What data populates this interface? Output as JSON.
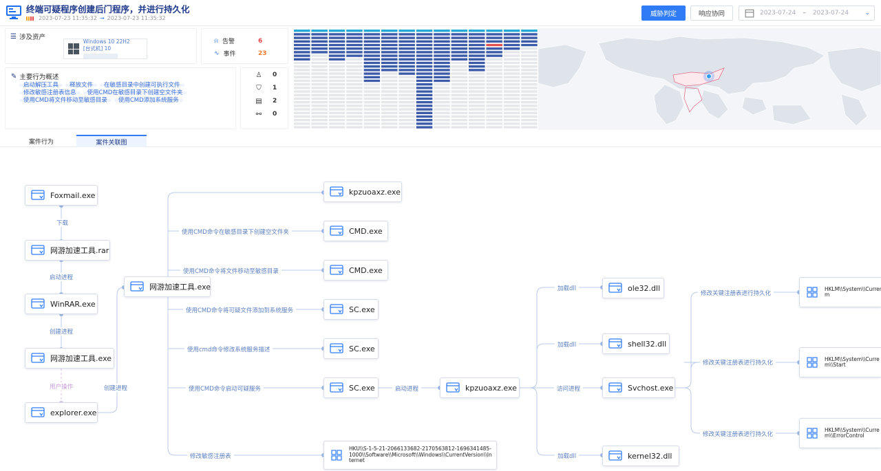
{
  "header": {
    "title": "终端可疑程序创建后门程序，并进行持久化",
    "time_start": "2023-07-23 11:35:32",
    "time_arrow": "→",
    "time_end": "2023-07-23 11:35:32",
    "btn_verdict": "威胁判定",
    "btn_response": "响应协同",
    "date_from": "2023-07-24",
    "date_sep": "–",
    "date_to": "2023-07-24",
    "severity_colors": [
      "#f5a623",
      "#f5a623",
      "#e84a4a",
      "#e84a4a"
    ]
  },
  "assets": {
    "title": "涉及资产",
    "os": "Windows 10  22H2",
    "host_prefix": "[台式机] 10"
  },
  "stats": {
    "alert_label": "告警",
    "alert_value": "6",
    "event_label": "事件",
    "event_value": "23",
    "alert_color": "#e84a4a",
    "event_color": "#f07b2a"
  },
  "behavior": {
    "title": "主要行为概述",
    "chips": [
      "启动解压工具",
      "释放文件",
      "在敏感目录中创建可执行文件",
      "修改敏感注册表信息",
      "使用CMD在敏感目录下创建空文件夹",
      "使用CMD将文件移动至敏感目录",
      "使用CMD添加系统服务"
    ]
  },
  "counts": [
    {
      "icon": "user-icon",
      "glyph": "♙",
      "value": "0"
    },
    {
      "icon": "shield-icon",
      "glyph": "⛉",
      "value": "1"
    },
    {
      "icon": "file-icon",
      "glyph": "▤",
      "value": "2"
    },
    {
      "icon": "link-icon",
      "glyph": "⚯",
      "value": "0"
    }
  ],
  "tabs": [
    {
      "label": "案件行为",
      "active": false
    },
    {
      "label": "案件关联图",
      "active": true
    }
  ],
  "graph": {
    "nodes": {
      "foxmail": "Foxmail.exe",
      "rar": "网游加速工具.rar",
      "winrar": "WinRAR.exe",
      "tool_exe_left": "网游加速工具.exe",
      "explorer": "explorer.exe",
      "tool_exe_mid": "网游加速工具.exe",
      "kpz1": "kpzuoaxz.exe",
      "cmd1": "CMD.exe",
      "cmd2": "CMD.exe",
      "sc1": "SC.exe",
      "sc2": "SC.exe",
      "sc3": "SC.exe",
      "reg_hku": "HKU\\\\S-1-5-21-2066133682-2170563812-1696341485-1000\\\\Software\\\\Microsoft\\\\Windows\\\\CurrentVersion\\\\Internet",
      "kpz2": "kpzuoaxz.exe",
      "ole32": "ole32.dll",
      "shell32": "shell32.dll",
      "svchost": "Svchost.exe",
      "kernel32": "kernel32.dll",
      "reg1": "HKLM\\\\System\\\\Current",
      "reg1b": "m",
      "reg2": "HKLM\\\\System\\\\Curre",
      "reg2b": "m\\\\Start",
      "reg3": "HKLM\\\\System\\\\Curre",
      "reg3b": "m\\\\ErrorControl"
    },
    "edges": {
      "download": "下载",
      "start_process": "启动进程",
      "create_process": "创建进程",
      "user_op": "用户操作",
      "create_process2": "创建进程",
      "e_cmd1": "使用CMD命令在敏感目录下创建空文件夹",
      "e_cmd2": "使用CMD命令将文件移动至敏感目录",
      "e_sc1": "使用CMD命令将可疑文件添加到系统服务",
      "e_sc2": "使用cmd命令修改系统服务描述",
      "e_sc3": "使用CMD命令启动可疑服务",
      "e_reg": "修改敏感注册表",
      "e_kpz2": "启动进程",
      "load1": "加载dll",
      "load2": "加载dll",
      "visit": "访问进程",
      "load3": "加载dll",
      "persist1": "修改关键注册表进行持久化",
      "persist2": "修改关键注册表进行持久化",
      "persist3": "修改关键注册表进行持久化"
    }
  }
}
